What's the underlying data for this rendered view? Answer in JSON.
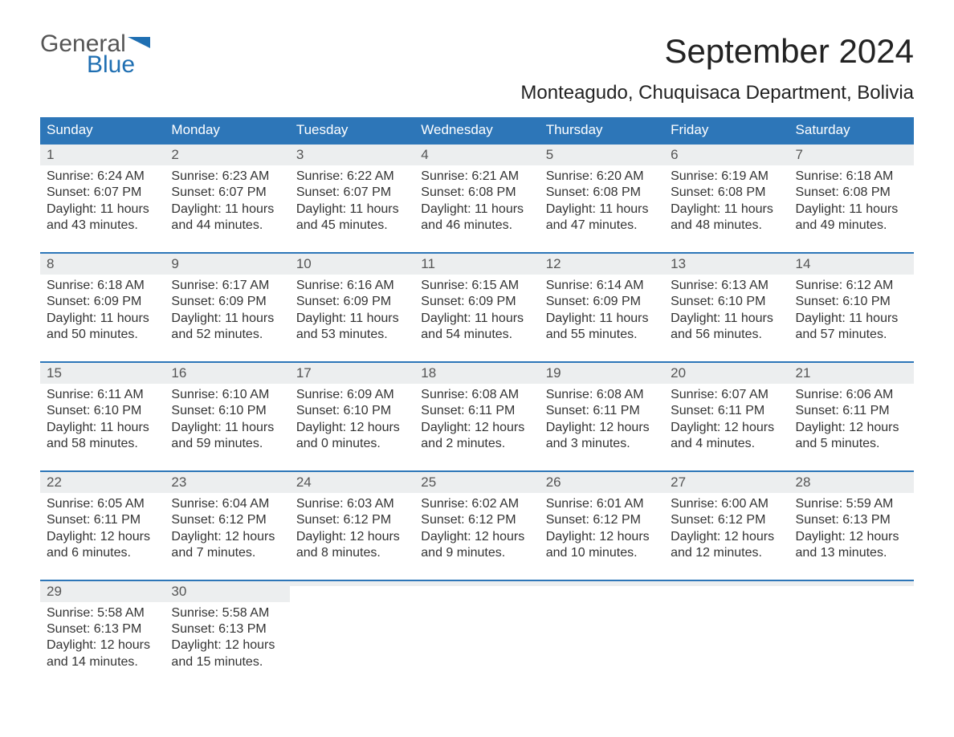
{
  "logo": {
    "general": "General",
    "blue": "Blue"
  },
  "title": "September 2024",
  "subtitle": "Monteagudo, Chuquisaca Department, Bolivia",
  "colors": {
    "header_bg": "#2d76b8",
    "header_text": "#ffffff",
    "daynum_bg": "#eceeef",
    "daynum_border": "#2d76b8",
    "body_bg": "#ffffff",
    "text": "#333333",
    "logo_blue": "#1f6fb2",
    "logo_gray": "#555555"
  },
  "typography": {
    "title_fontsize": 42,
    "subtitle_fontsize": 24,
    "weekday_fontsize": 17,
    "daynum_fontsize": 17,
    "body_fontsize": 16
  },
  "weekdays": [
    "Sunday",
    "Monday",
    "Tuesday",
    "Wednesday",
    "Thursday",
    "Friday",
    "Saturday"
  ],
  "weeks": [
    [
      {
        "n": "1",
        "sr": "Sunrise: 6:24 AM",
        "ss": "Sunset: 6:07 PM",
        "dl": "Daylight: 11 hours and 43 minutes."
      },
      {
        "n": "2",
        "sr": "Sunrise: 6:23 AM",
        "ss": "Sunset: 6:07 PM",
        "dl": "Daylight: 11 hours and 44 minutes."
      },
      {
        "n": "3",
        "sr": "Sunrise: 6:22 AM",
        "ss": "Sunset: 6:07 PM",
        "dl": "Daylight: 11 hours and 45 minutes."
      },
      {
        "n": "4",
        "sr": "Sunrise: 6:21 AM",
        "ss": "Sunset: 6:08 PM",
        "dl": "Daylight: 11 hours and 46 minutes."
      },
      {
        "n": "5",
        "sr": "Sunrise: 6:20 AM",
        "ss": "Sunset: 6:08 PM",
        "dl": "Daylight: 11 hours and 47 minutes."
      },
      {
        "n": "6",
        "sr": "Sunrise: 6:19 AM",
        "ss": "Sunset: 6:08 PM",
        "dl": "Daylight: 11 hours and 48 minutes."
      },
      {
        "n": "7",
        "sr": "Sunrise: 6:18 AM",
        "ss": "Sunset: 6:08 PM",
        "dl": "Daylight: 11 hours and 49 minutes."
      }
    ],
    [
      {
        "n": "8",
        "sr": "Sunrise: 6:18 AM",
        "ss": "Sunset: 6:09 PM",
        "dl": "Daylight: 11 hours and 50 minutes."
      },
      {
        "n": "9",
        "sr": "Sunrise: 6:17 AM",
        "ss": "Sunset: 6:09 PM",
        "dl": "Daylight: 11 hours and 52 minutes."
      },
      {
        "n": "10",
        "sr": "Sunrise: 6:16 AM",
        "ss": "Sunset: 6:09 PM",
        "dl": "Daylight: 11 hours and 53 minutes."
      },
      {
        "n": "11",
        "sr": "Sunrise: 6:15 AM",
        "ss": "Sunset: 6:09 PM",
        "dl": "Daylight: 11 hours and 54 minutes."
      },
      {
        "n": "12",
        "sr": "Sunrise: 6:14 AM",
        "ss": "Sunset: 6:09 PM",
        "dl": "Daylight: 11 hours and 55 minutes."
      },
      {
        "n": "13",
        "sr": "Sunrise: 6:13 AM",
        "ss": "Sunset: 6:10 PM",
        "dl": "Daylight: 11 hours and 56 minutes."
      },
      {
        "n": "14",
        "sr": "Sunrise: 6:12 AM",
        "ss": "Sunset: 6:10 PM",
        "dl": "Daylight: 11 hours and 57 minutes."
      }
    ],
    [
      {
        "n": "15",
        "sr": "Sunrise: 6:11 AM",
        "ss": "Sunset: 6:10 PM",
        "dl": "Daylight: 11 hours and 58 minutes."
      },
      {
        "n": "16",
        "sr": "Sunrise: 6:10 AM",
        "ss": "Sunset: 6:10 PM",
        "dl": "Daylight: 11 hours and 59 minutes."
      },
      {
        "n": "17",
        "sr": "Sunrise: 6:09 AM",
        "ss": "Sunset: 6:10 PM",
        "dl": "Daylight: 12 hours and 0 minutes."
      },
      {
        "n": "18",
        "sr": "Sunrise: 6:08 AM",
        "ss": "Sunset: 6:11 PM",
        "dl": "Daylight: 12 hours and 2 minutes."
      },
      {
        "n": "19",
        "sr": "Sunrise: 6:08 AM",
        "ss": "Sunset: 6:11 PM",
        "dl": "Daylight: 12 hours and 3 minutes."
      },
      {
        "n": "20",
        "sr": "Sunrise: 6:07 AM",
        "ss": "Sunset: 6:11 PM",
        "dl": "Daylight: 12 hours and 4 minutes."
      },
      {
        "n": "21",
        "sr": "Sunrise: 6:06 AM",
        "ss": "Sunset: 6:11 PM",
        "dl": "Daylight: 12 hours and 5 minutes."
      }
    ],
    [
      {
        "n": "22",
        "sr": "Sunrise: 6:05 AM",
        "ss": "Sunset: 6:11 PM",
        "dl": "Daylight: 12 hours and 6 minutes."
      },
      {
        "n": "23",
        "sr": "Sunrise: 6:04 AM",
        "ss": "Sunset: 6:12 PM",
        "dl": "Daylight: 12 hours and 7 minutes."
      },
      {
        "n": "24",
        "sr": "Sunrise: 6:03 AM",
        "ss": "Sunset: 6:12 PM",
        "dl": "Daylight: 12 hours and 8 minutes."
      },
      {
        "n": "25",
        "sr": "Sunrise: 6:02 AM",
        "ss": "Sunset: 6:12 PM",
        "dl": "Daylight: 12 hours and 9 minutes."
      },
      {
        "n": "26",
        "sr": "Sunrise: 6:01 AM",
        "ss": "Sunset: 6:12 PM",
        "dl": "Daylight: 12 hours and 10 minutes."
      },
      {
        "n": "27",
        "sr": "Sunrise: 6:00 AM",
        "ss": "Sunset: 6:12 PM",
        "dl": "Daylight: 12 hours and 12 minutes."
      },
      {
        "n": "28",
        "sr": "Sunrise: 5:59 AM",
        "ss": "Sunset: 6:13 PM",
        "dl": "Daylight: 12 hours and 13 minutes."
      }
    ],
    [
      {
        "n": "29",
        "sr": "Sunrise: 5:58 AM",
        "ss": "Sunset: 6:13 PM",
        "dl": "Daylight: 12 hours and 14 minutes."
      },
      {
        "n": "30",
        "sr": "Sunrise: 5:58 AM",
        "ss": "Sunset: 6:13 PM",
        "dl": "Daylight: 12 hours and 15 minutes."
      },
      {
        "n": "",
        "sr": "",
        "ss": "",
        "dl": ""
      },
      {
        "n": "",
        "sr": "",
        "ss": "",
        "dl": ""
      },
      {
        "n": "",
        "sr": "",
        "ss": "",
        "dl": ""
      },
      {
        "n": "",
        "sr": "",
        "ss": "",
        "dl": ""
      },
      {
        "n": "",
        "sr": "",
        "ss": "",
        "dl": ""
      }
    ]
  ]
}
